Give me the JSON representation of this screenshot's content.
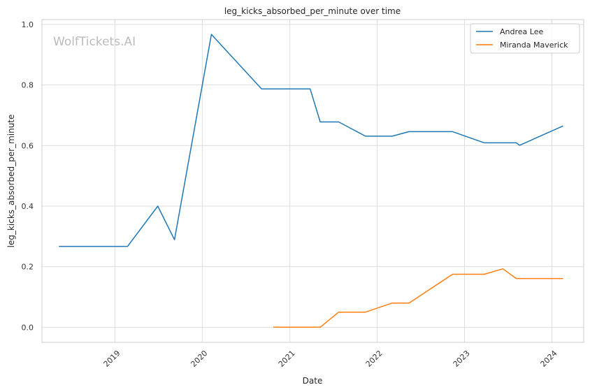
{
  "chart_data": {
    "type": "line",
    "title": "leg_kicks_absorbed_per_minute over time",
    "xlabel": "Date",
    "ylabel": "leg_kicks_absorbed_per_minute",
    "watermark": "WolfTickets.AI",
    "x_ticks": [
      "2019",
      "2020",
      "2021",
      "2022",
      "2023",
      "2024"
    ],
    "y_ticks": [
      "0.0",
      "0.2",
      "0.4",
      "0.6",
      "0.8",
      "1.0"
    ],
    "xlim": [
      "2018-03-02",
      "2024-05-13"
    ],
    "ylim": [
      -0.05,
      1.0
    ],
    "grid": true,
    "legend_position": "top-right",
    "series": [
      {
        "name": "Andrea Lee",
        "color": "#1f77b4",
        "points": [
          [
            "2018-05-12",
            0.267
          ],
          [
            "2019-02-23",
            0.267
          ],
          [
            "2019-06-29",
            0.4
          ],
          [
            "2019-09-07",
            0.289
          ],
          [
            "2020-02-08",
            0.967
          ],
          [
            "2020-09-05",
            0.787
          ],
          [
            "2021-03-27",
            0.787
          ],
          [
            "2021-05-08",
            0.678
          ],
          [
            "2021-07-24",
            0.678
          ],
          [
            "2021-11-13",
            0.631
          ],
          [
            "2022-03-05",
            0.631
          ],
          [
            "2022-05-14",
            0.646
          ],
          [
            "2022-11-12",
            0.646
          ],
          [
            "2023-03-25",
            0.609
          ],
          [
            "2023-08-05",
            0.609
          ],
          [
            "2023-08-19",
            0.601
          ],
          [
            "2024-02-17",
            0.665
          ]
        ]
      },
      {
        "name": "Miranda Maverick",
        "color": "#ff7f0e",
        "points": [
          [
            "2020-10-24",
            0.0
          ],
          [
            "2021-05-08",
            0.0
          ],
          [
            "2021-07-24",
            0.05
          ],
          [
            "2021-11-13",
            0.05
          ],
          [
            "2022-03-05",
            0.08
          ],
          [
            "2022-05-14",
            0.08
          ],
          [
            "2022-11-12",
            0.175
          ],
          [
            "2023-03-25",
            0.175
          ],
          [
            "2023-06-10",
            0.193
          ],
          [
            "2023-08-05",
            0.161
          ],
          [
            "2024-02-17",
            0.161
          ]
        ]
      }
    ]
  }
}
